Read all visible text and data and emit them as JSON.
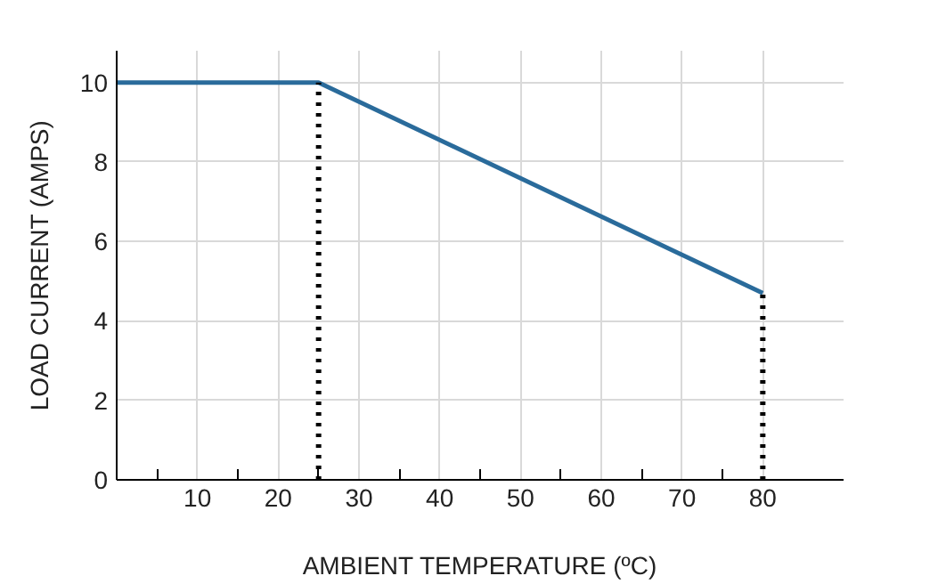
{
  "chart_data": {
    "type": "line",
    "xlabel": "AMBIENT TEMPERATURE (ºC)",
    "ylabel": "LOAD CURRENT (AMPS)",
    "xlim": [
      0,
      90
    ],
    "ylim": [
      0,
      10.8
    ],
    "xticks": [
      {
        "value": 5,
        "label": null
      },
      10,
      {
        "value": 15,
        "label": null
      },
      20,
      {
        "value": 25,
        "label": null
      },
      30,
      {
        "value": 35,
        "label": null
      },
      40,
      {
        "value": 45,
        "label": null
      },
      50,
      {
        "value": 55,
        "label": null
      },
      60,
      {
        "value": 65,
        "label": null
      },
      70,
      {
        "value": 75,
        "label": null
      },
      80
    ],
    "yticks": [
      0,
      2,
      4,
      6,
      8,
      10
    ],
    "grid": true,
    "marker": "none",
    "series": [
      {
        "color": "#2a6b9b",
        "x": [
          0,
          25,
          80
        ],
        "values": [
          10,
          10,
          4.7
        ],
        "line_style": "solid"
      },
      {
        "color": "#000000",
        "x": [
          25,
          25
        ],
        "values": [
          0,
          10
        ],
        "line_style": "dotted"
      },
      {
        "color": "#000000",
        "x": [
          80,
          80
        ],
        "values": [
          0,
          4.7
        ],
        "line_style": "dotted"
      }
    ]
  }
}
